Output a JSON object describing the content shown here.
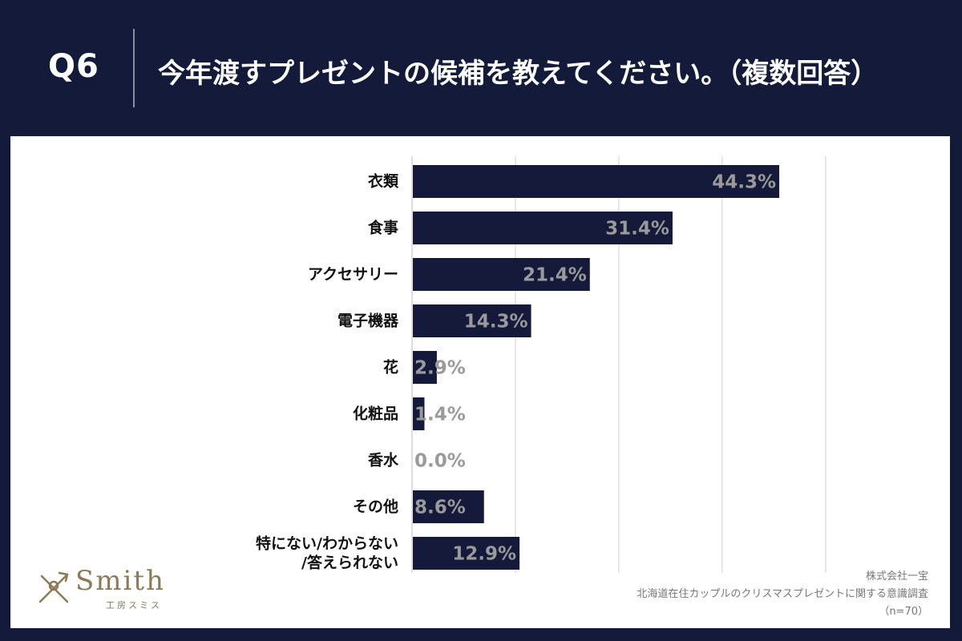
{
  "header": {
    "q_label": "Q6",
    "question": "今年渡すプレゼントの候補を教えてください。（複数回答）"
  },
  "colors": {
    "background": "#141b3a",
    "bar": "#151a3b",
    "value_label": "#9a9a9a",
    "gridline": "#d0d0d0",
    "logo": "#8c7a55"
  },
  "chart_data": {
    "type": "bar",
    "orientation": "horizontal",
    "categories": [
      "衣類",
      "食事",
      "アクセサリー",
      "電子機器",
      "花",
      "化粧品",
      "香水",
      "その他",
      "特にない/わからない/答えられない"
    ],
    "category_lines": [
      [
        "衣類"
      ],
      [
        "食事"
      ],
      [
        "アクセサリー"
      ],
      [
        "電子機器"
      ],
      [
        "花"
      ],
      [
        "化粧品"
      ],
      [
        "香水"
      ],
      [
        "その他"
      ],
      [
        "特にない/わからない",
        "/答えられない"
      ]
    ],
    "values": [
      44.3,
      31.4,
      21.4,
      14.3,
      2.9,
      1.4,
      0.0,
      8.6,
      12.9
    ],
    "value_labels": [
      "44.3%",
      "31.4%",
      "21.4%",
      "14.3%",
      "2.9%",
      "1.4%",
      "0.0%",
      "8.6%",
      "12.9%"
    ],
    "xlim": [
      0,
      60
    ],
    "grid_step": 12.5,
    "grid": true,
    "legend": "none"
  },
  "logo": {
    "name": "Smith",
    "sub": "工房スミス"
  },
  "source": {
    "company": "株式会社一宝",
    "survey": "北海道在住カップルのクリスマスプレゼントに関する意識調査",
    "n": "（n=70）"
  }
}
